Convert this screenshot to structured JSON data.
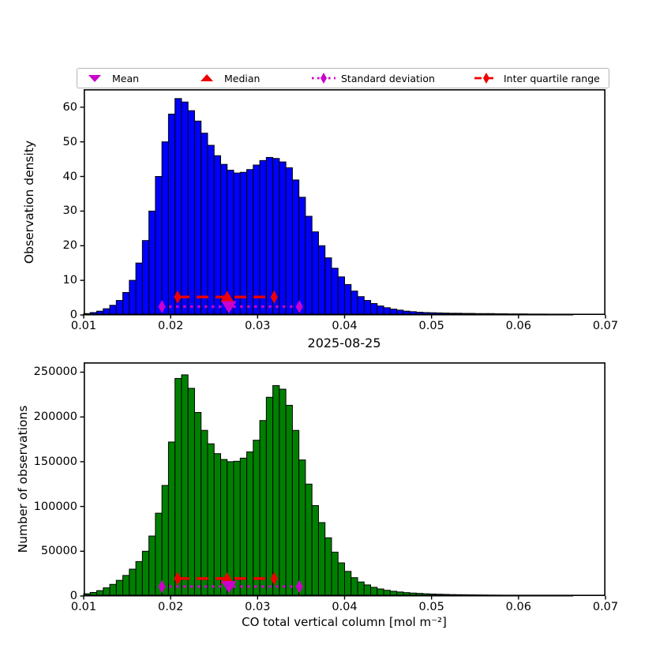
{
  "figure": {
    "title": "2025-08-25",
    "background": "#ffffff"
  },
  "legend": {
    "items": [
      {
        "label": "Mean",
        "marker": "triangle-down",
        "color": "#CC00CC"
      },
      {
        "label": "Median",
        "marker": "triangle-up",
        "color": "#EE0000"
      },
      {
        "label": "Standard deviation",
        "marker": "diamond-dotted-line",
        "color": "#CC00CC"
      },
      {
        "label": "Inter quartile range",
        "marker": "diamond-dashed-line",
        "color": "#EE0000"
      }
    ]
  },
  "chart_data": [
    {
      "id": "density",
      "type": "bar",
      "title": "",
      "xlabel": "",
      "ylabel": "Observation density",
      "bar_color": "#0000FF",
      "bar_edge_color": "#000000",
      "grid": false,
      "xlim": [
        0.01,
        0.07
      ],
      "ylim": [
        0,
        65.2
      ],
      "x_start": 0.01,
      "bin_width": 0.00075,
      "xticks": [
        0.01,
        0.02,
        0.03,
        0.04,
        0.05,
        0.06,
        0.07
      ],
      "xtick_labels": [
        "0.01",
        "0.02",
        "0.03",
        "0.04",
        "0.05",
        "0.06",
        "0.07"
      ],
      "yticks": [
        0,
        10,
        20,
        30,
        40,
        50,
        60
      ],
      "ytick_labels": [
        "0",
        "10",
        "20",
        "30",
        "40",
        "50",
        "60"
      ],
      "values": [
        0.4,
        0.7,
        1.1,
        1.8,
        2.8,
        4.2,
        6.5,
        10,
        15,
        21.5,
        30,
        40,
        50,
        58,
        62.5,
        61.5,
        59,
        56,
        52.5,
        49,
        46,
        43.5,
        41.8,
        41,
        41.2,
        42,
        43.3,
        44.6,
        45.5,
        45.2,
        44.2,
        42.5,
        39,
        34,
        28.5,
        24,
        20,
        16.5,
        13.5,
        11,
        8.8,
        6.9,
        5.3,
        4.2,
        3.3,
        2.6,
        2.1,
        1.7,
        1.4,
        1.1,
        0.95,
        0.8,
        0.7,
        0.65,
        0.6,
        0.55,
        0.5,
        0.5,
        0.45,
        0.45,
        0.4,
        0.4,
        0.4,
        0.35,
        0.35,
        0.3,
        0.3,
        0.3,
        0.25,
        0.25,
        0.25,
        0.2,
        0.2,
        0.2,
        0.2,
        0,
        0,
        0,
        0,
        0
      ],
      "stats": {
        "mean": 0.0267,
        "median": 0.0265,
        "std_range": [
          0.019,
          0.0348
        ],
        "std_y": 2.4,
        "iqr_range": [
          0.0208,
          0.0319
        ],
        "iqr_y": 5.2
      }
    },
    {
      "id": "counts",
      "type": "bar",
      "title": "",
      "xlabel": "CO total vertical column [mol m⁻²]",
      "ylabel": "Number of observations",
      "bar_color": "#008000",
      "bar_edge_color": "#000000",
      "grid": false,
      "xlim": [
        0.01,
        0.07
      ],
      "ylim": [
        0,
        261000
      ],
      "x_start": 0.01,
      "bin_width": 0.00075,
      "xticks": [
        0.01,
        0.02,
        0.03,
        0.04,
        0.05,
        0.06,
        0.07
      ],
      "xtick_labels": [
        "0.01",
        "0.02",
        "0.03",
        "0.04",
        "0.05",
        "0.06",
        "0.07"
      ],
      "yticks": [
        0,
        50000,
        100000,
        150000,
        200000,
        250000
      ],
      "ytick_labels": [
        "0",
        "50000",
        "100000",
        "150000",
        "200000",
        "250000"
      ],
      "values": [
        2500,
        4000,
        6000,
        9100,
        13000,
        17500,
        23000,
        30000,
        38500,
        50000,
        67000,
        92500,
        123500,
        172000,
        243000,
        247000,
        232000,
        205000,
        185000,
        170000,
        159000,
        152500,
        150000,
        150500,
        154000,
        161000,
        174000,
        196000,
        222000,
        235000,
        231000,
        213000,
        185000,
        152000,
        125000,
        101000,
        82000,
        65000,
        49000,
        37000,
        27500,
        20500,
        15700,
        12400,
        9700,
        7900,
        6400,
        5300,
        4500,
        3800,
        3300,
        2900,
        2500,
        2200,
        2000,
        1800,
        1600,
        1500,
        1400,
        1300,
        1200,
        1100,
        1000,
        950,
        900,
        850,
        800,
        750,
        700,
        650,
        600,
        550,
        500,
        450,
        400,
        0,
        0,
        0,
        0,
        0
      ],
      "stats": {
        "mean": 0.0267,
        "median": 0.0265,
        "std_range": [
          0.019,
          0.0348
        ],
        "std_y": 10500,
        "iqr_range": [
          0.0208,
          0.0319
        ],
        "iqr_y": 19500
      }
    }
  ]
}
